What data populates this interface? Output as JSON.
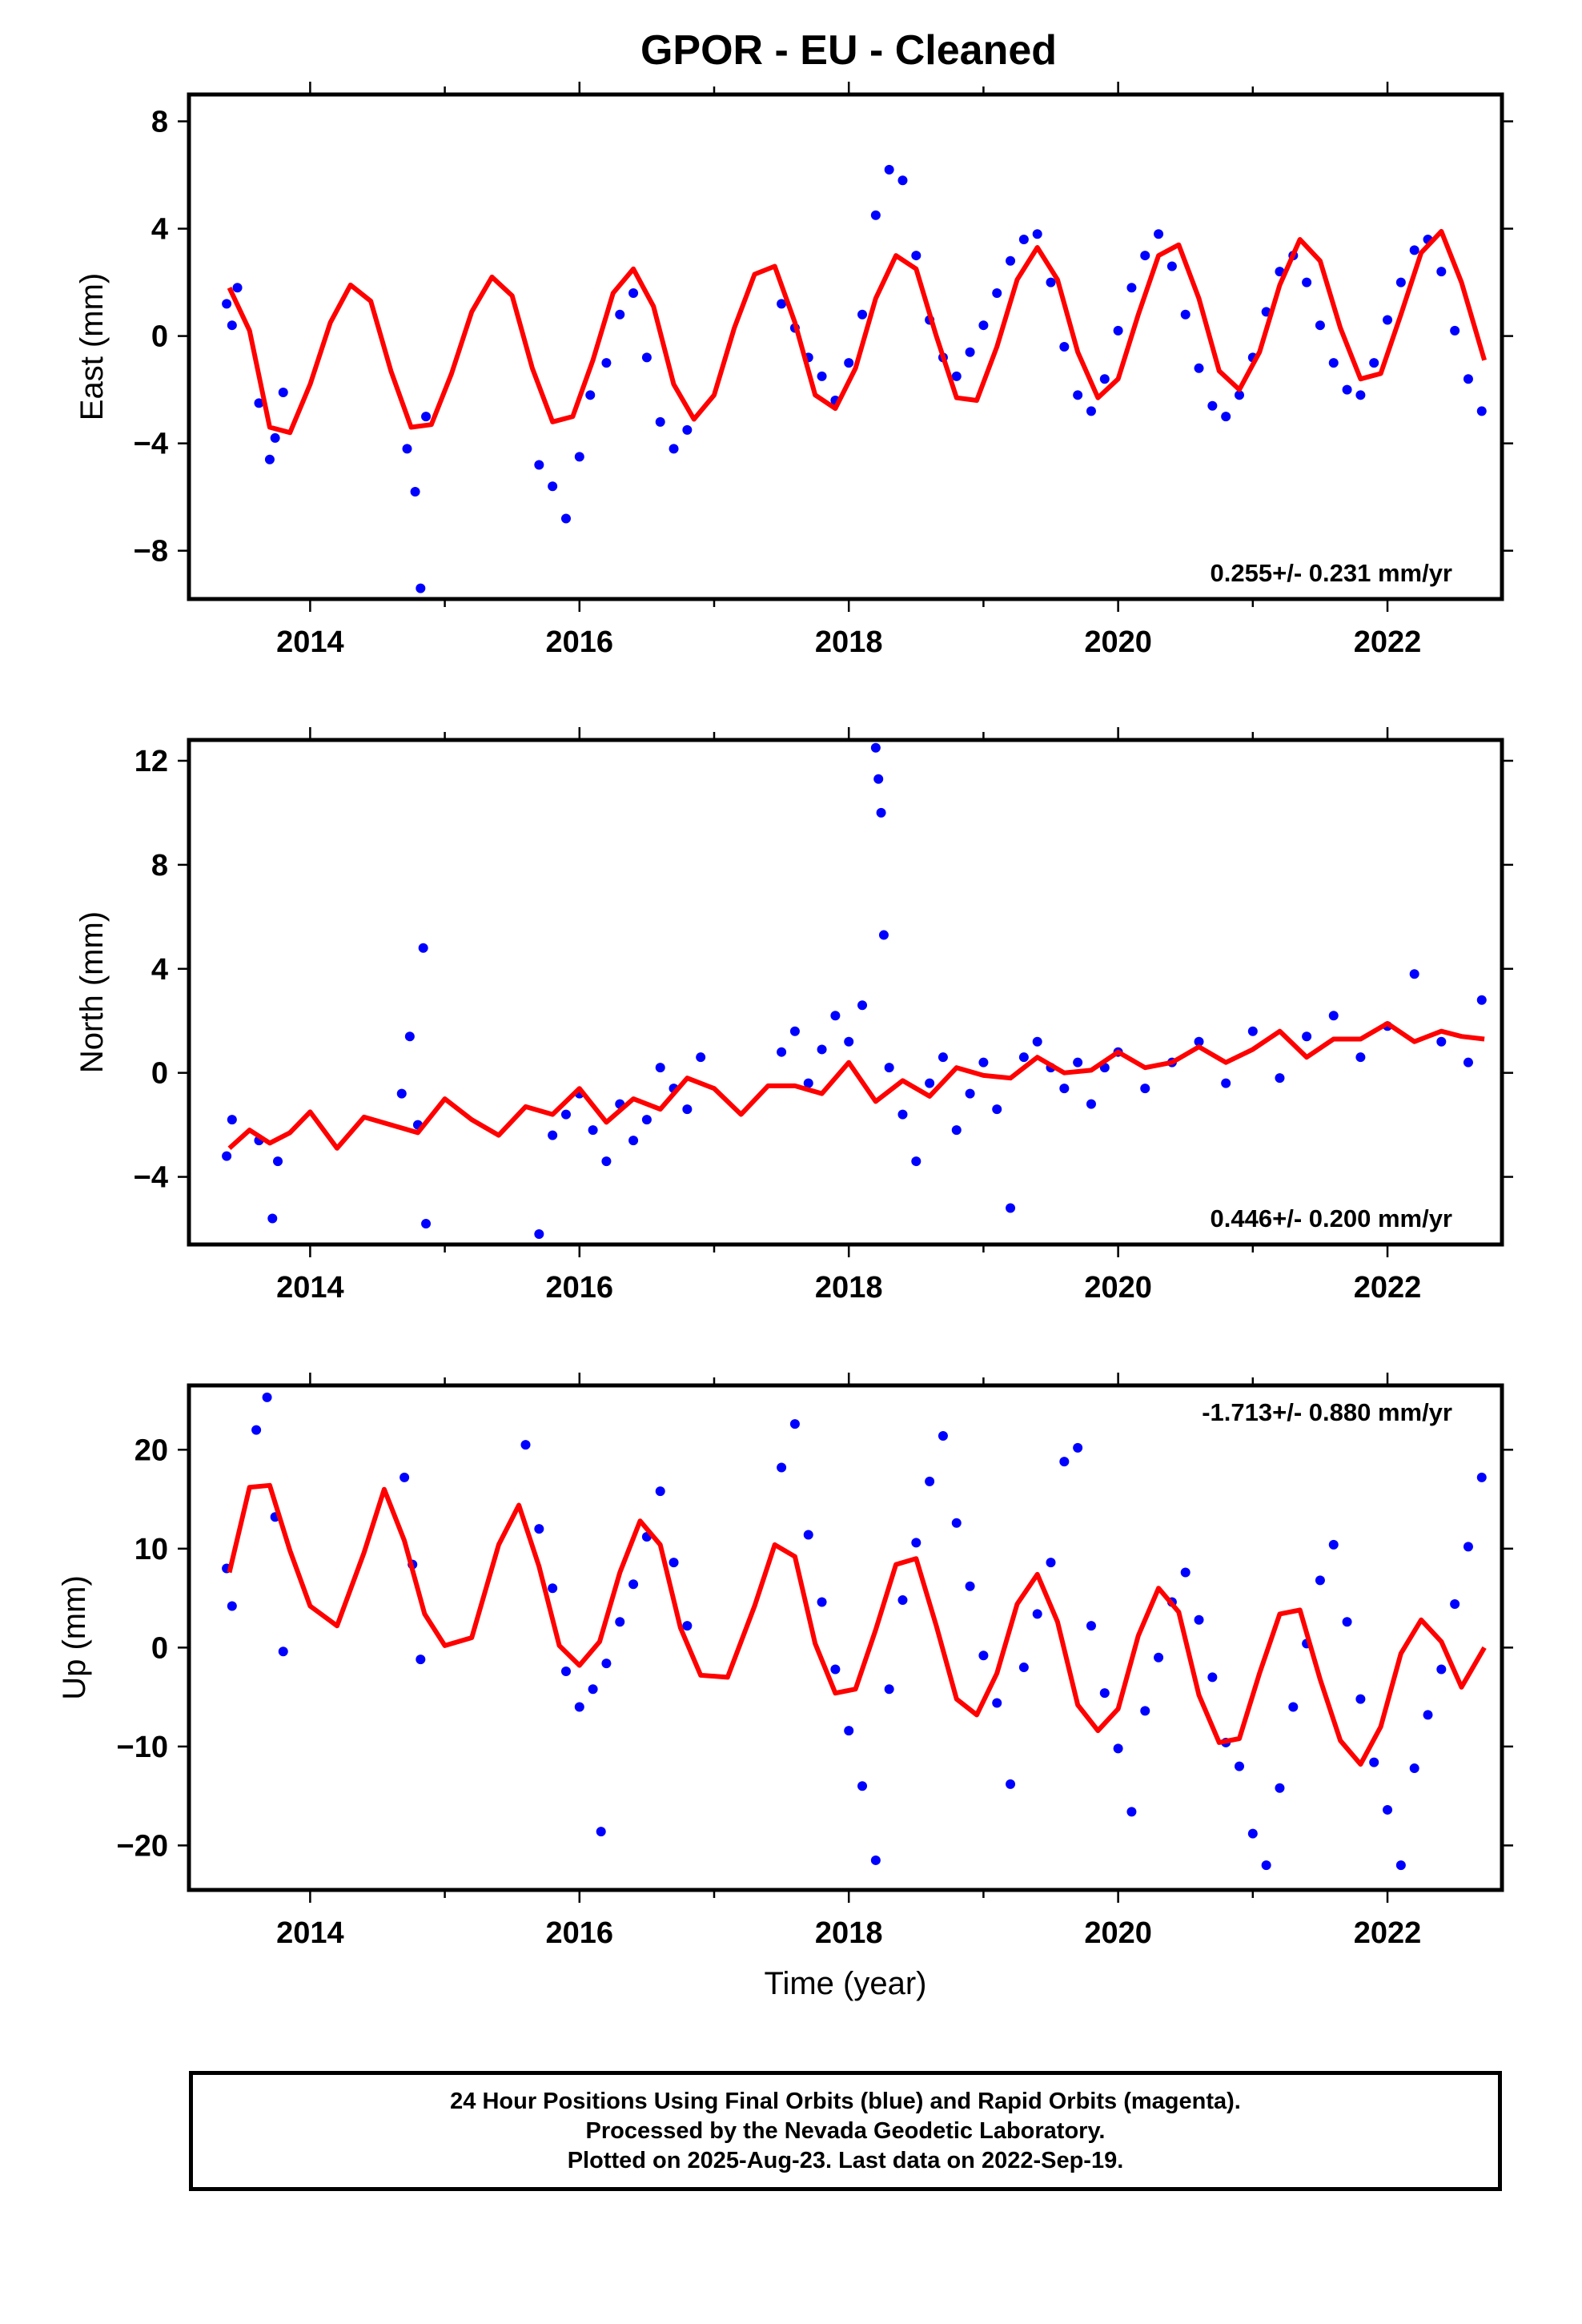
{
  "title": "GPOR  - EU - Cleaned",
  "colors": {
    "data_points": "#0000ff",
    "model_curve": "#ff0000",
    "frame": "#000000"
  },
  "chart_data": [
    {
      "type": "scatter",
      "panel": "east",
      "ylabel": "East (mm)",
      "xlabel": "",
      "xlim": [
        2013.1,
        2022.85
      ],
      "ylim": [
        -9.8,
        9.0
      ],
      "yticks": [
        8,
        4,
        0,
        -4,
        -8
      ],
      "ytick_labels": [
        "8",
        "4",
        "0",
        "−4",
        "−8"
      ],
      "xticks": [
        2014,
        2016,
        2018,
        2020,
        2022
      ],
      "xtick_labels": [
        "2014",
        "2016",
        "2018",
        "2020",
        "2022"
      ],
      "rate_label": "0.255+/- 0.231 mm/yr",
      "rate_position": "bottom-right",
      "series": [
        {
          "role": "observations",
          "x": [
            2013.38,
            2013.42,
            2013.46,
            2013.62,
            2013.7,
            2013.74,
            2013.8,
            2014.72,
            2014.78,
            2014.82,
            2014.86,
            2015.7,
            2015.8,
            2015.9,
            2016.0,
            2016.08,
            2016.2,
            2016.3,
            2016.4,
            2016.5,
            2016.6,
            2016.7,
            2016.8,
            2017.5,
            2017.6,
            2017.7,
            2017.8,
            2017.9,
            2018.0,
            2018.1,
            2018.2,
            2018.3,
            2018.4,
            2018.5,
            2018.6,
            2018.7,
            2018.8,
            2018.9,
            2019.0,
            2019.1,
            2019.2,
            2019.3,
            2019.4,
            2019.5,
            2019.6,
            2019.7,
            2019.8,
            2019.9,
            2020.0,
            2020.1,
            2020.2,
            2020.3,
            2020.4,
            2020.5,
            2020.6,
            2020.7,
            2020.8,
            2020.9,
            2021.0,
            2021.1,
            2021.2,
            2021.3,
            2021.4,
            2021.5,
            2021.6,
            2021.7,
            2021.8,
            2021.9,
            2022.0,
            2022.1,
            2022.2,
            2022.3,
            2022.4,
            2022.5,
            2022.6,
            2022.7
          ],
          "y": [
            1.2,
            0.4,
            1.8,
            -2.5,
            -4.6,
            -3.8,
            -2.1,
            -4.2,
            -5.8,
            -9.4,
            -3.0,
            -4.8,
            -5.6,
            -6.8,
            -4.5,
            -2.2,
            -1.0,
            0.8,
            1.6,
            -0.8,
            -3.2,
            -4.2,
            -3.5,
            1.2,
            0.3,
            -0.8,
            -1.5,
            -2.4,
            -1.0,
            0.8,
            4.5,
            6.2,
            5.8,
            3.0,
            0.6,
            -0.8,
            -1.5,
            -0.6,
            0.4,
            1.6,
            2.8,
            3.6,
            3.8,
            2.0,
            -0.4,
            -2.2,
            -2.8,
            -1.6,
            0.2,
            1.8,
            3.0,
            3.8,
            2.6,
            0.8,
            -1.2,
            -2.6,
            -3.0,
            -2.2,
            -0.8,
            0.9,
            2.4,
            3.0,
            2.0,
            0.4,
            -1.0,
            -2.0,
            -2.2,
            -1.0,
            0.6,
            2.0,
            3.2,
            3.6,
            2.4,
            0.2,
            -1.6,
            -2.8
          ]
        },
        {
          "role": "model",
          "x": [
            2013.4,
            2013.55,
            2013.7,
            2013.85,
            2014.0,
            2014.15,
            2014.3,
            2014.45,
            2014.6,
            2014.75,
            2014.9,
            2015.05,
            2015.2,
            2015.35,
            2015.5,
            2015.65,
            2015.8,
            2015.95,
            2016.1,
            2016.25,
            2016.4,
            2016.55,
            2016.7,
            2016.85,
            2017.0,
            2017.15,
            2017.3,
            2017.45,
            2017.6,
            2017.75,
            2017.9,
            2018.05,
            2018.2,
            2018.35,
            2018.5,
            2018.65,
            2018.8,
            2018.95,
            2019.1,
            2019.25,
            2019.4,
            2019.55,
            2019.7,
            2019.85,
            2020.0,
            2020.15,
            2020.3,
            2020.45,
            2020.6,
            2020.75,
            2020.9,
            2021.05,
            2021.2,
            2021.35,
            2021.5,
            2021.65,
            2021.8,
            2021.95,
            2022.1,
            2022.25,
            2022.4,
            2022.55,
            2022.72
          ],
          "y": [
            1.8,
            0.2,
            -3.4,
            -3.6,
            -1.8,
            0.5,
            1.9,
            1.3,
            -1.3,
            -3.4,
            -3.3,
            -1.4,
            0.9,
            2.2,
            1.5,
            -1.2,
            -3.2,
            -3.0,
            -0.9,
            1.6,
            2.5,
            1.1,
            -1.8,
            -3.1,
            -2.2,
            0.3,
            2.3,
            2.6,
            0.5,
            -2.2,
            -2.7,
            -1.2,
            1.4,
            3.0,
            2.5,
            0.0,
            -2.3,
            -2.4,
            -0.4,
            2.1,
            3.3,
            2.1,
            -0.6,
            -2.3,
            -1.6,
            0.8,
            3.0,
            3.4,
            1.4,
            -1.3,
            -2.0,
            -0.6,
            1.9,
            3.6,
            2.8,
            0.3,
            -1.6,
            -1.4,
            0.8,
            3.1,
            3.9,
            2.0,
            -0.9
          ]
        }
      ]
    },
    {
      "type": "scatter",
      "panel": "north",
      "ylabel": "North (mm)",
      "xlabel": "",
      "xlim": [
        2013.1,
        2022.85
      ],
      "ylim": [
        -6.6,
        12.8
      ],
      "yticks": [
        12,
        8,
        4,
        0,
        -4
      ],
      "ytick_labels": [
        "12",
        "8",
        "4",
        "0",
        "−4"
      ],
      "xticks": [
        2014,
        2016,
        2018,
        2020,
        2022
      ],
      "xtick_labels": [
        "2014",
        "2016",
        "2018",
        "2020",
        "2022"
      ],
      "rate_label": "0.446+/- 0.200 mm/yr",
      "rate_position": "bottom-right",
      "series": [
        {
          "role": "observations",
          "x": [
            2013.38,
            2013.42,
            2013.62,
            2013.72,
            2013.76,
            2014.68,
            2014.74,
            2014.8,
            2014.84,
            2014.86,
            2015.7,
            2015.8,
            2015.9,
            2016.0,
            2016.1,
            2016.2,
            2016.3,
            2016.4,
            2016.5,
            2016.6,
            2016.7,
            2016.8,
            2016.9,
            2017.5,
            2017.6,
            2017.7,
            2017.8,
            2017.9,
            2018.0,
            2018.1,
            2018.2,
            2018.22,
            2018.24,
            2018.26,
            2018.3,
            2018.4,
            2018.5,
            2018.6,
            2018.7,
            2018.8,
            2018.9,
            2019.0,
            2019.1,
            2019.2,
            2019.3,
            2019.4,
            2019.5,
            2019.6,
            2019.7,
            2019.8,
            2019.9,
            2020.0,
            2020.2,
            2020.4,
            2020.6,
            2020.8,
            2021.0,
            2021.2,
            2021.4,
            2021.6,
            2021.8,
            2022.0,
            2022.2,
            2022.4,
            2022.6,
            2022.7
          ],
          "y": [
            -3.2,
            -1.8,
            -2.6,
            -5.6,
            -3.4,
            -0.8,
            1.4,
            -2.0,
            4.8,
            -5.8,
            -6.2,
            -2.4,
            -1.6,
            -0.8,
            -2.2,
            -3.4,
            -1.2,
            -2.6,
            -1.8,
            0.2,
            -0.6,
            -1.4,
            0.6,
            0.8,
            1.6,
            -0.4,
            0.9,
            2.2,
            1.2,
            2.6,
            12.5,
            11.3,
            10.0,
            5.3,
            0.2,
            -1.6,
            -3.4,
            -0.4,
            0.6,
            -2.2,
            -0.8,
            0.4,
            -1.4,
            -5.2,
            0.6,
            1.2,
            0.2,
            -0.6,
            0.4,
            -1.2,
            0.2,
            0.8,
            -0.6,
            0.4,
            1.2,
            -0.4,
            1.6,
            -0.2,
            1.4,
            2.2,
            0.6,
            1.8,
            3.8,
            1.2,
            0.4,
            2.8
          ]
        },
        {
          "role": "model",
          "x": [
            2013.4,
            2013.55,
            2013.7,
            2013.85,
            2014.0,
            2014.2,
            2014.4,
            2014.6,
            2014.8,
            2015.0,
            2015.2,
            2015.4,
            2015.6,
            2015.8,
            2016.0,
            2016.2,
            2016.4,
            2016.6,
            2016.8,
            2017.0,
            2017.2,
            2017.4,
            2017.6,
            2017.8,
            2018.0,
            2018.2,
            2018.4,
            2018.6,
            2018.8,
            2019.0,
            2019.2,
            2019.4,
            2019.6,
            2019.8,
            2020.0,
            2020.2,
            2020.4,
            2020.6,
            2020.8,
            2021.0,
            2021.2,
            2021.4,
            2021.6,
            2021.8,
            2022.0,
            2022.2,
            2022.4,
            2022.55,
            2022.72
          ],
          "y": [
            -2.9,
            -2.2,
            -2.7,
            -2.3,
            -1.5,
            -2.9,
            -1.7,
            -2.0,
            -2.3,
            -1.0,
            -1.8,
            -2.4,
            -1.3,
            -1.6,
            -0.6,
            -1.9,
            -1.0,
            -1.4,
            -0.2,
            -0.6,
            -1.6,
            -0.5,
            -0.5,
            -0.8,
            0.4,
            -1.1,
            -0.3,
            -0.9,
            0.2,
            -0.1,
            -0.2,
            0.6,
            0.0,
            0.1,
            0.8,
            0.2,
            0.4,
            1.0,
            0.4,
            0.9,
            1.6,
            0.6,
            1.3,
            1.3,
            1.9,
            1.2,
            1.6,
            1.4,
            1.3
          ]
        }
      ]
    },
    {
      "type": "scatter",
      "panel": "up",
      "ylabel": "Up (mm)",
      "xlabel": "Time (year)",
      "xlim": [
        2013.1,
        2022.85
      ],
      "ylim": [
        -24.5,
        26.5
      ],
      "yticks": [
        20,
        10,
        0,
        -10,
        -20
      ],
      "ytick_labels": [
        "20",
        "10",
        "0",
        "−10",
        "−20"
      ],
      "xticks": [
        2014,
        2016,
        2018,
        2020,
        2022
      ],
      "xtick_labels": [
        "2014",
        "2016",
        "2018",
        "2020",
        "2022"
      ],
      "rate_label": "-1.713+/- 0.880 mm/yr",
      "rate_position": "top-right",
      "series": [
        {
          "role": "observations",
          "x": [
            2013.38,
            2013.42,
            2013.6,
            2013.68,
            2013.74,
            2013.8,
            2014.7,
            2014.76,
            2014.82,
            2015.6,
            2015.7,
            2015.8,
            2015.9,
            2016.0,
            2016.1,
            2016.16,
            2016.2,
            2016.3,
            2016.4,
            2016.5,
            2016.6,
            2016.7,
            2016.8,
            2017.5,
            2017.6,
            2017.7,
            2017.8,
            2017.9,
            2018.0,
            2018.1,
            2018.2,
            2018.3,
            2018.4,
            2018.5,
            2018.6,
            2018.7,
            2018.8,
            2018.9,
            2019.0,
            2019.1,
            2019.2,
            2019.3,
            2019.4,
            2019.5,
            2019.6,
            2019.7,
            2019.8,
            2019.9,
            2020.0,
            2020.1,
            2020.2,
            2020.3,
            2020.4,
            2020.5,
            2020.6,
            2020.7,
            2020.8,
            2020.9,
            2021.0,
            2021.1,
            2021.2,
            2021.3,
            2021.4,
            2021.5,
            2021.6,
            2021.7,
            2021.8,
            2021.9,
            2022.0,
            2022.1,
            2022.2,
            2022.3,
            2022.4,
            2022.5,
            2022.6,
            2022.7
          ],
          "y": [
            8.0,
            4.2,
            22.0,
            25.3,
            13.2,
            -0.4,
            17.2,
            8.4,
            -1.2,
            20.5,
            12.0,
            6.0,
            -2.4,
            -6.0,
            -4.2,
            -18.6,
            -1.6,
            2.6,
            6.4,
            11.2,
            15.8,
            8.6,
            2.2,
            18.2,
            22.6,
            11.4,
            4.6,
            -2.2,
            -8.4,
            -14.0,
            -21.5,
            -4.2,
            4.8,
            10.6,
            16.8,
            21.4,
            12.6,
            6.2,
            -0.8,
            -5.6,
            -13.8,
            -2.0,
            3.4,
            8.6,
            18.8,
            20.2,
            2.2,
            -4.6,
            -10.2,
            -16.6,
            -6.4,
            -1.0,
            4.6,
            7.6,
            2.8,
            -3.0,
            -9.6,
            -12.0,
            -18.8,
            -22.0,
            -14.2,
            -6.0,
            0.4,
            6.8,
            10.4,
            2.6,
            -5.2,
            -11.6,
            -16.4,
            -22.0,
            -12.2,
            -6.8,
            -2.2,
            4.4,
            10.2,
            17.2
          ]
        },
        {
          "role": "model",
          "x": [
            2013.4,
            2013.55,
            2013.7,
            2013.85,
            2014.0,
            2014.2,
            2014.4,
            2014.55,
            2014.7,
            2014.85,
            2015.0,
            2015.2,
            2015.4,
            2015.55,
            2015.7,
            2015.85,
            2016.0,
            2016.15,
            2016.3,
            2016.45,
            2016.6,
            2016.75,
            2016.9,
            2017.1,
            2017.3,
            2017.45,
            2017.6,
            2017.75,
            2017.9,
            2018.05,
            2018.2,
            2018.35,
            2018.5,
            2018.65,
            2018.8,
            2018.95,
            2019.1,
            2019.25,
            2019.4,
            2019.55,
            2019.7,
            2019.85,
            2020.0,
            2020.15,
            2020.3,
            2020.45,
            2020.6,
            2020.75,
            2020.9,
            2021.05,
            2021.2,
            2021.35,
            2021.5,
            2021.65,
            2021.8,
            2021.95,
            2022.1,
            2022.25,
            2022.4,
            2022.55,
            2022.72
          ],
          "y": [
            7.6,
            16.2,
            16.4,
            9.8,
            4.2,
            2.2,
            9.6,
            16.0,
            10.8,
            3.4,
            0.2,
            1.0,
            10.4,
            14.4,
            8.2,
            0.2,
            -1.8,
            0.6,
            7.6,
            12.8,
            10.4,
            2.0,
            -2.8,
            -3.0,
            4.2,
            10.4,
            9.2,
            0.4,
            -4.6,
            -4.2,
            1.8,
            8.4,
            9.0,
            2.2,
            -5.2,
            -6.8,
            -2.6,
            4.4,
            7.4,
            2.6,
            -5.8,
            -8.4,
            -6.2,
            1.2,
            6.0,
            3.6,
            -4.8,
            -9.6,
            -9.2,
            -2.6,
            3.4,
            3.8,
            -3.2,
            -9.4,
            -11.8,
            -8.0,
            -0.6,
            2.8,
            0.6,
            -4.0,
            0.0
          ]
        }
      ]
    }
  ],
  "footer": {
    "line1": "24 Hour Positions Using Final Orbits (blue) and Rapid Orbits (magenta).",
    "line2": "Processed by the Nevada Geodetic Laboratory.",
    "line3": "Plotted on 2025-Aug-23. Last data on 2022-Sep-19."
  }
}
